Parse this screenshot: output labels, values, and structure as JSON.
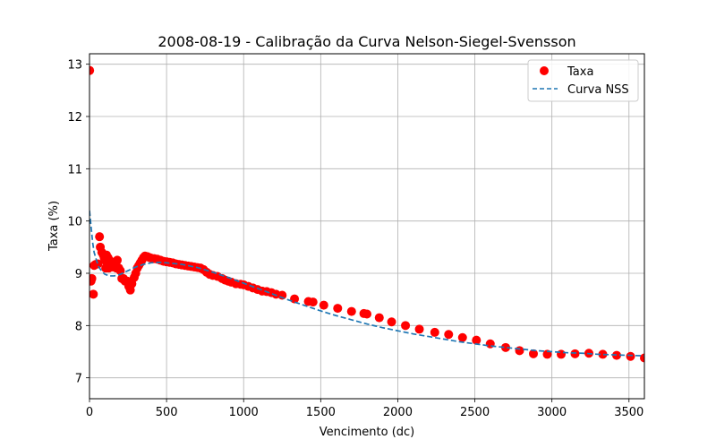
{
  "chart_data": {
    "type": "scatter",
    "title": "2008-08-19 - Calibração da Curva Nelson-Siegel-Svensson",
    "xlabel": "Vencimento (dc)",
    "ylabel": "Taxa (%)",
    "xlim": [
      0,
      3600
    ],
    "ylim": [
      6.6,
      13.2
    ],
    "xticks": [
      0,
      500,
      1000,
      1500,
      2000,
      2500,
      3000,
      3500
    ],
    "yticks": [
      7,
      8,
      9,
      10,
      11,
      12,
      13
    ],
    "grid": true,
    "legend_position": "top-right",
    "series": [
      {
        "name": "Taxa",
        "kind": "scatter",
        "color": "#ff0000",
        "points": [
          [
            1,
            12.88
          ],
          [
            10,
            8.85
          ],
          [
            15,
            8.9
          ],
          [
            25,
            8.6
          ],
          [
            30,
            9.15
          ],
          [
            40,
            9.17
          ],
          [
            55,
            9.18
          ],
          [
            65,
            9.7
          ],
          [
            70,
            9.5
          ],
          [
            80,
            9.4
          ],
          [
            90,
            9.35
          ],
          [
            95,
            9.3
          ],
          [
            100,
            9.25
          ],
          [
            105,
            9.1
          ],
          [
            110,
            9.35
          ],
          [
            115,
            9.2
          ],
          [
            120,
            9.3
          ],
          [
            125,
            9.1
          ],
          [
            130,
            9.25
          ],
          [
            135,
            9.2
          ],
          [
            140,
            9.15
          ],
          [
            150,
            9.12
          ],
          [
            160,
            9.2
          ],
          [
            170,
            9.15
          ],
          [
            175,
            9.1
          ],
          [
            180,
            9.25
          ],
          [
            190,
            9.1
          ],
          [
            200,
            9.05
          ],
          [
            210,
            8.9
          ],
          [
            220,
            8.9
          ],
          [
            230,
            8.85
          ],
          [
            245,
            8.85
          ],
          [
            255,
            8.75
          ],
          [
            265,
            8.68
          ],
          [
            275,
            8.8
          ],
          [
            290,
            8.92
          ],
          [
            300,
            9.0
          ],
          [
            310,
            9.1
          ],
          [
            320,
            9.15
          ],
          [
            330,
            9.2
          ],
          [
            340,
            9.25
          ],
          [
            350,
            9.3
          ],
          [
            360,
            9.33
          ],
          [
            375,
            9.32
          ],
          [
            390,
            9.3
          ],
          [
            400,
            9.29
          ],
          [
            420,
            9.28
          ],
          [
            440,
            9.27
          ],
          [
            460,
            9.25
          ],
          [
            480,
            9.23
          ],
          [
            500,
            9.22
          ],
          [
            520,
            9.21
          ],
          [
            540,
            9.2
          ],
          [
            560,
            9.18
          ],
          [
            580,
            9.17
          ],
          [
            600,
            9.16
          ],
          [
            620,
            9.15
          ],
          [
            640,
            9.14
          ],
          [
            660,
            9.13
          ],
          [
            680,
            9.12
          ],
          [
            700,
            9.11
          ],
          [
            720,
            9.1
          ],
          [
            740,
            9.07
          ],
          [
            760,
            9.02
          ],
          [
            780,
            8.98
          ],
          [
            800,
            8.96
          ],
          [
            830,
            8.94
          ],
          [
            860,
            8.9
          ],
          [
            880,
            8.87
          ],
          [
            900,
            8.85
          ],
          [
            920,
            8.83
          ],
          [
            950,
            8.8
          ],
          [
            980,
            8.79
          ],
          [
            1000,
            8.78
          ],
          [
            1030,
            8.75
          ],
          [
            1060,
            8.72
          ],
          [
            1090,
            8.69
          ],
          [
            1120,
            8.66
          ],
          [
            1150,
            8.65
          ],
          [
            1180,
            8.63
          ],
          [
            1210,
            8.6
          ],
          [
            1250,
            8.58
          ],
          [
            1330,
            8.51
          ],
          [
            1420,
            8.46
          ],
          [
            1450,
            8.45
          ],
          [
            1520,
            8.39
          ],
          [
            1610,
            8.33
          ],
          [
            1700,
            8.27
          ],
          [
            1780,
            8.23
          ],
          [
            1800,
            8.22
          ],
          [
            1880,
            8.15
          ],
          [
            1960,
            8.07
          ],
          [
            2050,
            8.0
          ],
          [
            2140,
            7.93
          ],
          [
            2240,
            7.87
          ],
          [
            2330,
            7.83
          ],
          [
            2420,
            7.77
          ],
          [
            2510,
            7.72
          ],
          [
            2600,
            7.65
          ],
          [
            2700,
            7.58
          ],
          [
            2790,
            7.52
          ],
          [
            2880,
            7.46
          ],
          [
            2970,
            7.45
          ],
          [
            3060,
            7.45
          ],
          [
            3150,
            7.46
          ],
          [
            3240,
            7.47
          ],
          [
            3330,
            7.45
          ],
          [
            3420,
            7.43
          ],
          [
            3510,
            7.41
          ],
          [
            3600,
            7.38
          ]
        ]
      },
      {
        "name": "Curva NSS",
        "kind": "line",
        "style": "dashed",
        "color": "#1f77b4",
        "points": [
          [
            0,
            10.2
          ],
          [
            10,
            9.9
          ],
          [
            20,
            9.6
          ],
          [
            30,
            9.4
          ],
          [
            45,
            9.25
          ],
          [
            60,
            9.12
          ],
          [
            80,
            9.04
          ],
          [
            100,
            8.98
          ],
          [
            130,
            8.95
          ],
          [
            160,
            8.95
          ],
          [
            200,
            8.98
          ],
          [
            250,
            9.05
          ],
          [
            300,
            9.12
          ],
          [
            350,
            9.17
          ],
          [
            400,
            9.2
          ],
          [
            450,
            9.21
          ],
          [
            500,
            9.2
          ],
          [
            600,
            9.17
          ],
          [
            700,
            9.11
          ],
          [
            800,
            9.02
          ],
          [
            900,
            8.92
          ],
          [
            1000,
            8.81
          ],
          [
            1100,
            8.7
          ],
          [
            1200,
            8.59
          ],
          [
            1300,
            8.48
          ],
          [
            1400,
            8.38
          ],
          [
            1500,
            8.28
          ],
          [
            1600,
            8.19
          ],
          [
            1700,
            8.11
          ],
          [
            1800,
            8.03
          ],
          [
            1900,
            7.96
          ],
          [
            2000,
            7.9
          ],
          [
            2100,
            7.84
          ],
          [
            2200,
            7.79
          ],
          [
            2300,
            7.74
          ],
          [
            2400,
            7.69
          ],
          [
            2500,
            7.65
          ],
          [
            2600,
            7.61
          ],
          [
            2700,
            7.58
          ],
          [
            2800,
            7.55
          ],
          [
            2900,
            7.52
          ],
          [
            3000,
            7.5
          ],
          [
            3100,
            7.48
          ],
          [
            3200,
            7.47
          ],
          [
            3300,
            7.45
          ],
          [
            3400,
            7.44
          ],
          [
            3500,
            7.43
          ],
          [
            3600,
            7.42
          ]
        ]
      }
    ]
  }
}
